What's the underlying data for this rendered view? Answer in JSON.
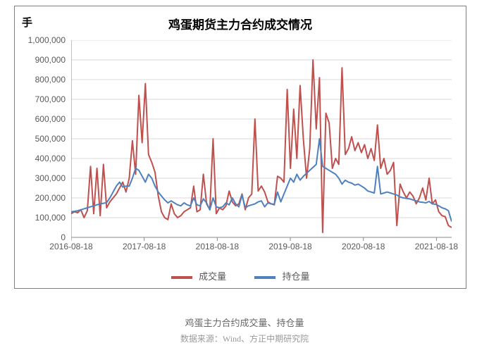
{
  "chart": {
    "title": "鸡蛋期货主力合约成交情况",
    "y_unit": "手",
    "type": "line",
    "background_color": "#ffffff",
    "border_color": "#7f7f7f",
    "grid_color": "#d9d9d9",
    "axis_color": "#8a8a8a",
    "tick_label_color": "#595959",
    "title_fontsize": 17,
    "label_fontsize": 12,
    "ylim": [
      0,
      1000000
    ],
    "ytick_step": 100000,
    "ytick_labels": [
      "0",
      "100,000",
      "200,000",
      "300,000",
      "400,000",
      "500,000",
      "600,000",
      "700,000",
      "800,000",
      "900,000",
      "1,000,000"
    ],
    "x_min_label": "2016-08-18",
    "xtick_labels": [
      "2016-08-18",
      "2017-08-18",
      "2018-08-18",
      "2019-08-18",
      "2020-08-18",
      "2021-08-18"
    ],
    "xtick_positions": [
      0,
      0.192,
      0.384,
      0.576,
      0.768,
      0.96
    ],
    "legend_position": "bottom",
    "series": {
      "volume": {
        "label": "成交量",
        "color": "#c0504d",
        "line_width": 2,
        "values": [
          120000,
          130000,
          125000,
          140000,
          100000,
          135000,
          360000,
          120000,
          350000,
          110000,
          370000,
          150000,
          180000,
          200000,
          220000,
          250000,
          280000,
          230000,
          300000,
          490000,
          320000,
          720000,
          480000,
          780000,
          420000,
          380000,
          330000,
          210000,
          130000,
          100000,
          90000,
          170000,
          120000,
          100000,
          110000,
          130000,
          140000,
          150000,
          260000,
          130000,
          140000,
          320000,
          170000,
          140000,
          500000,
          120000,
          150000,
          140000,
          160000,
          235000,
          180000,
          160000,
          170000,
          220000,
          140000,
          200000,
          220000,
          600000,
          235000,
          260000,
          230000,
          180000,
          170000,
          165000,
          310000,
          300000,
          280000,
          750000,
          350000,
          650000,
          400000,
          770000,
          500000,
          300000,
          450000,
          900000,
          550000,
          810000,
          25000,
          630000,
          580000,
          350000,
          400000,
          370000,
          860000,
          420000,
          450000,
          510000,
          440000,
          480000,
          430000,
          470000,
          400000,
          450000,
          390000,
          570000,
          350000,
          400000,
          320000,
          340000,
          380000,
          60000,
          270000,
          230000,
          200000,
          230000,
          210000,
          170000,
          200000,
          250000,
          190000,
          300000,
          170000,
          190000,
          130000,
          110000,
          105000,
          60000,
          50000
        ]
      },
      "open_interest": {
        "label": "持仓量",
        "color": "#4f81bd",
        "line_width": 2,
        "values": [
          130000,
          132000,
          135000,
          140000,
          145000,
          150000,
          155000,
          160000,
          165000,
          170000,
          173000,
          176000,
          200000,
          230000,
          260000,
          280000,
          255000,
          260000,
          260000,
          300000,
          350000,
          340000,
          310000,
          280000,
          320000,
          300000,
          260000,
          230000,
          210000,
          190000,
          175000,
          185000,
          175000,
          165000,
          160000,
          175000,
          165000,
          160000,
          200000,
          165000,
          160000,
          195000,
          175000,
          140000,
          200000,
          155000,
          150000,
          155000,
          175000,
          165000,
          200000,
          170000,
          155000,
          215000,
          150000,
          160000,
          165000,
          170000,
          180000,
          185000,
          155000,
          175000,
          170000,
          168000,
          230000,
          180000,
          220000,
          260000,
          300000,
          280000,
          320000,
          290000,
          310000,
          325000,
          340000,
          355000,
          370000,
          500000,
          360000,
          350000,
          340000,
          330000,
          320000,
          300000,
          270000,
          290000,
          280000,
          275000,
          265000,
          270000,
          260000,
          250000,
          235000,
          230000,
          225000,
          360000,
          220000,
          225000,
          230000,
          225000,
          220000,
          215000,
          205000,
          200000,
          198000,
          195000,
          190000,
          185000,
          180000,
          178000,
          175000,
          182000,
          170000,
          168000,
          160000,
          150000,
          145000,
          135000,
          80000
        ]
      }
    }
  },
  "caption": {
    "title": "鸡蛋主力合约成交量、持仓量",
    "source": "数据来源：Wind、方正中期研究院"
  }
}
